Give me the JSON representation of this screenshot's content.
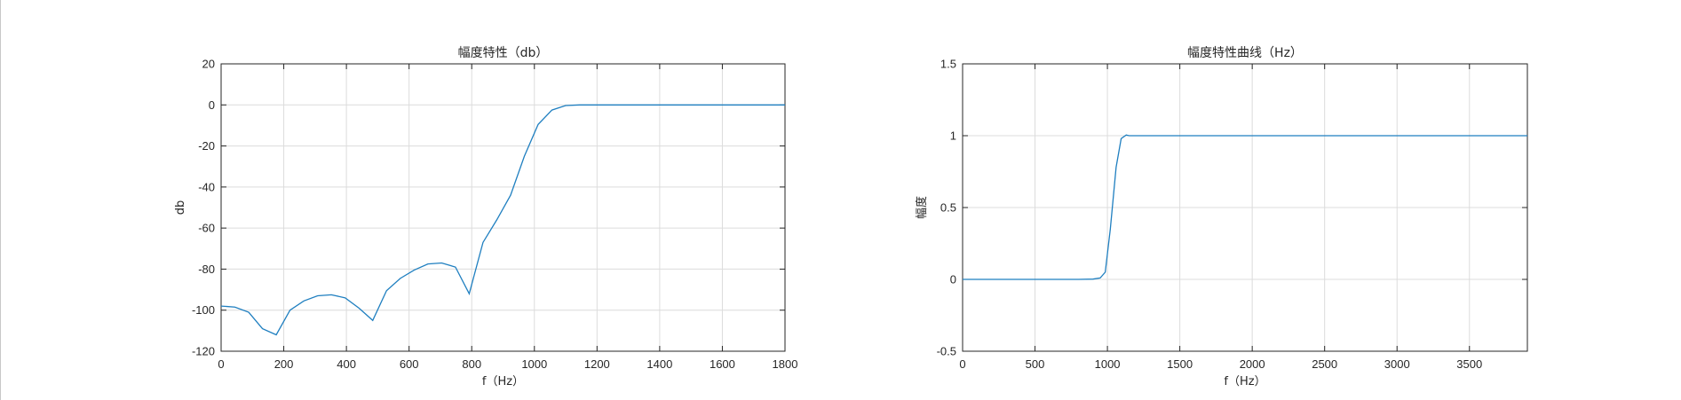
{
  "colors": {
    "line": "#1f7fc0",
    "grid": "#dcdcdc",
    "axis": "#262626"
  },
  "chart_data": [
    {
      "type": "line",
      "title": "幅度特性（db）",
      "xlabel": "f（Hz）",
      "ylabel": "db",
      "xlim": [
        0,
        1800
      ],
      "ylim": [
        -120,
        20
      ],
      "xticks": [
        0,
        200,
        400,
        600,
        800,
        1000,
        1200,
        1400,
        1600,
        1800
      ],
      "yticks": [
        -120,
        -100,
        -80,
        -60,
        -40,
        -20,
        0,
        20
      ],
      "grid": true,
      "series": [
        {
          "x": [
            0,
            44,
            88,
            132,
            176,
            220,
            264,
            308,
            352,
            396,
            440,
            484,
            528,
            572,
            616,
            660,
            704,
            748,
            792,
            836,
            880,
            924,
            968,
            1012,
            1056,
            1100,
            1144,
            1188,
            1232,
            1400,
            1600,
            1800
          ],
          "y": [
            -98,
            -98.5,
            -101,
            -109,
            -112,
            -100,
            -95.5,
            -93,
            -92.5,
            -94,
            -99,
            -105,
            -90.5,
            -84.5,
            -80.5,
            -77.5,
            -77,
            -79,
            -92,
            -67,
            -56,
            -44,
            -25,
            -9.5,
            -2.5,
            -0.3,
            0,
            0,
            0,
            0,
            0,
            0
          ]
        }
      ]
    },
    {
      "type": "line",
      "title": "幅度特性曲线（Hz）",
      "xlabel": "f（Hz）",
      "ylabel": "幅度",
      "xlim": [
        0,
        3900
      ],
      "ylim": [
        -0.5,
        1.5
      ],
      "xticks": [
        0,
        500,
        1000,
        1500,
        2000,
        2500,
        3000,
        3500
      ],
      "yticks": [
        -0.5,
        0,
        0.5,
        1,
        1.5
      ],
      "grid": true,
      "series": [
        {
          "x": [
            0,
            200,
            400,
            600,
            800,
            900,
            950,
            985,
            1020,
            1060,
            1095,
            1130,
            1150,
            1200,
            1500,
            2000,
            2500,
            3000,
            3500,
            3900
          ],
          "y": [
            0,
            0,
            0,
            0,
            0,
            0.002,
            0.01,
            0.05,
            0.35,
            0.78,
            0.98,
            1.005,
            1.0,
            1.0,
            1,
            1,
            1,
            1,
            1,
            1
          ]
        }
      ]
    }
  ]
}
